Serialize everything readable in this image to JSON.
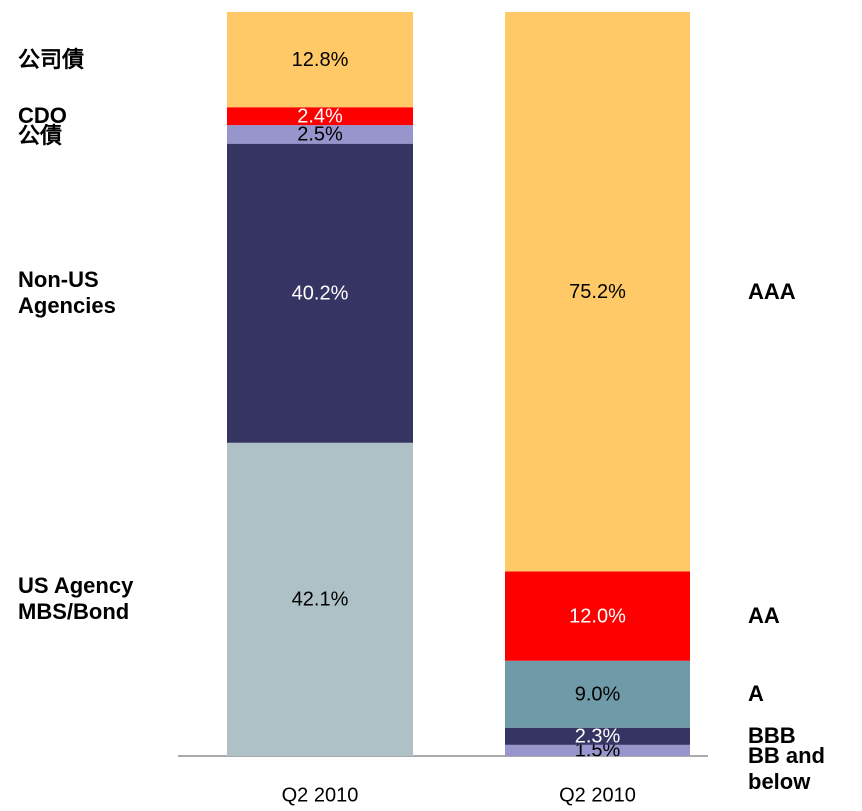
{
  "chart_data": [
    {
      "type": "bar",
      "stacked": true,
      "legend": "left",
      "categories": [
        "Q2 2010"
      ],
      "ylim": [
        0,
        100
      ],
      "series": [
        {
          "name": "US Agency MBS/Bond",
          "color": "#adc1c6",
          "values": [
            42.1
          ],
          "value_labels": [
            "42.1%"
          ]
        },
        {
          "name": "Non-US Agencies",
          "color": "#353463",
          "values": [
            40.2
          ],
          "value_labels": [
            "40.2%"
          ]
        },
        {
          "name": "公債",
          "color": "#9795cc",
          "values": [
            2.5
          ],
          "value_labels": [
            "2.5%"
          ]
        },
        {
          "name": "CDO",
          "color": "#fe0000",
          "values": [
            2.4
          ],
          "value_labels": [
            "2.4%"
          ]
        },
        {
          "name": "公司債",
          "color": "#fec966",
          "values": [
            12.8
          ],
          "value_labels": [
            "12.8%"
          ]
        }
      ]
    },
    {
      "type": "bar",
      "stacked": true,
      "legend": "right",
      "categories": [
        "Q2 2010"
      ],
      "ylim": [
        0,
        100
      ],
      "series": [
        {
          "name": "BB and below",
          "color": "#9795cc",
          "values": [
            1.5
          ],
          "value_labels": [
            "1.5%"
          ]
        },
        {
          "name": "BBB",
          "color": "#353463",
          "values": [
            2.3
          ],
          "value_labels": [
            "2.3%"
          ]
        },
        {
          "name": "A",
          "color": "#6f9ba8",
          "values": [
            9.0
          ],
          "value_labels": [
            "9.0%"
          ]
        },
        {
          "name": "AA",
          "color": "#fe0000",
          "values": [
            12.0
          ],
          "value_labels": [
            "12.0%"
          ]
        },
        {
          "name": "AAA",
          "color": "#fec966",
          "values": [
            75.2
          ],
          "value_labels": [
            "75.2%"
          ]
        }
      ]
    }
  ]
}
